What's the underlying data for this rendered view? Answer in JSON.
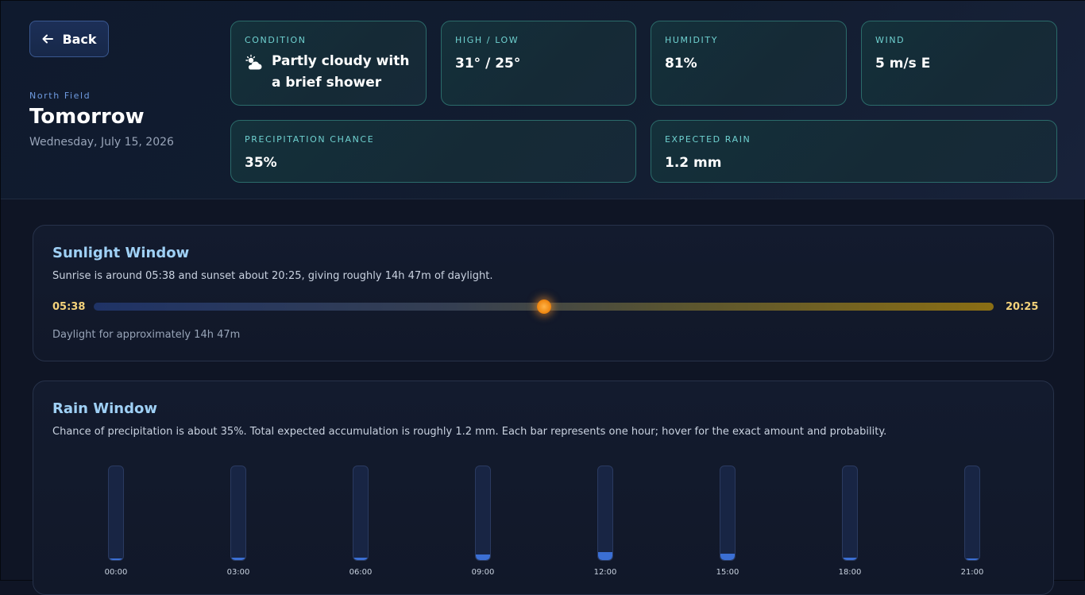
{
  "header": {
    "back_label": "Back",
    "location": "North Field",
    "day": "Tomorrow",
    "date": "Wednesday, July 15, 2026"
  },
  "cards": {
    "condition": {
      "label": "CONDITION",
      "value": "Partly cloudy with a brief shower",
      "icon": "partly-cloudy-shower-icon"
    },
    "high_low": {
      "label": "HIGH / LOW",
      "value": "31° / 25°"
    },
    "humidity": {
      "label": "HUMIDITY",
      "value": "81%"
    },
    "wind": {
      "label": "WIND",
      "value": "5 m/s E"
    },
    "precip_chance": {
      "label": "PRECIPITATION CHANCE",
      "value": "35%"
    },
    "expected_rain": {
      "label": "EXPECTED RAIN",
      "value": "1.2 mm"
    }
  },
  "sunlight": {
    "title": "Sunlight Window",
    "description": "Sunrise is around 05:38 and sunset about 20:25, giving roughly 14h 47m of daylight.",
    "sunrise": "05:38",
    "sunset": "20:25",
    "sun_position_fraction": 0.5,
    "note": "Daylight for approximately 14h 47m"
  },
  "rain": {
    "title": "Rain Window",
    "description": "Chance of precipitation is about 35%. Total expected accumulation is roughly 1.2 mm. Each bar represents one hour; hover for the exact amount and probability."
  },
  "chart_data": {
    "type": "bar",
    "categories": [
      "00:00",
      "03:00",
      "06:00",
      "09:00",
      "12:00",
      "15:00",
      "18:00",
      "21:00"
    ],
    "values": [
      0.0,
      0.02,
      0.03,
      0.07,
      0.1,
      0.08,
      0.03,
      0.0
    ],
    "ylim": [
      0,
      1.2
    ],
    "grid": false,
    "legend": "none"
  },
  "colors": {
    "accent": "#6fd1d0",
    "bar": "#3b6fd4",
    "sun": "#f08a14"
  }
}
